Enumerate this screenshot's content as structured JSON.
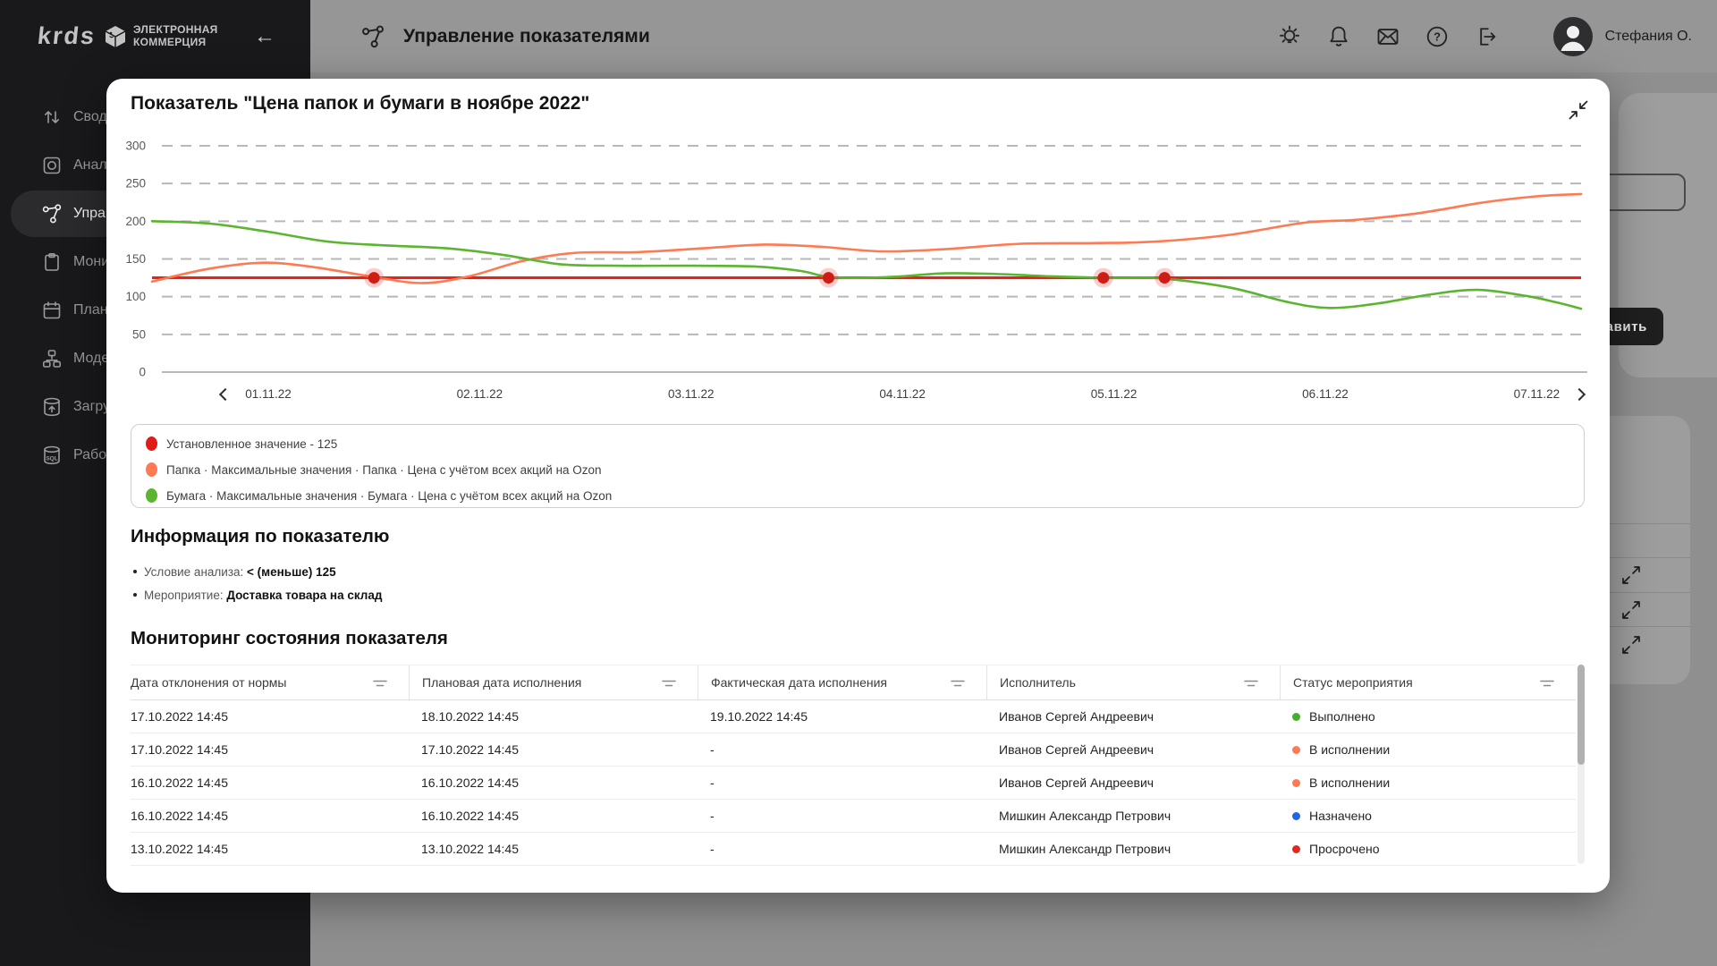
{
  "sidebar": {
    "brand": "krds",
    "brand_line1": "ЭЛЕКТРОННАЯ",
    "brand_line2": "КОММЕРЦИЯ",
    "items": [
      {
        "label": "Сводн",
        "icon": "summary-icon",
        "active": false
      },
      {
        "label": "Анали",
        "icon": "analytics-icon",
        "active": false
      },
      {
        "label": "Управ",
        "icon": "indicators-icon",
        "active": true
      },
      {
        "label": "Монит",
        "icon": "monitoring-icon",
        "active": false
      },
      {
        "label": "План р",
        "icon": "plan-icon",
        "active": false
      },
      {
        "label": "Модел",
        "icon": "model-icon",
        "active": false
      },
      {
        "label": "Загру",
        "icon": "upload-db-icon",
        "active": false
      },
      {
        "label": "Работ",
        "icon": "sql-db-icon",
        "active": false
      }
    ]
  },
  "header": {
    "title": "Управление показателями",
    "user_name": "Стефания О."
  },
  "background": {
    "add_button_label": "авить"
  },
  "modal": {
    "title": "Показатель \"Цена папок и бумаги в ноябре 2022\"",
    "legend": [
      {
        "color": "#e01b18",
        "label": "Установленное значение - 125"
      },
      {
        "color": "#ff7a52",
        "label": "Папка · Максимальные значения · Папка · Цена с учётом всех акций на Ozon"
      },
      {
        "color": "#5cb531",
        "label": "Бумага · Максимальные значения · Бумага · Цена с учётом всех акций на Ozon"
      }
    ],
    "info": {
      "heading": "Информация по показателю",
      "items": [
        {
          "label": "Условие анализа:",
          "value": "< (меньше) 125"
        },
        {
          "label": "Мероприятие:",
          "value": "Доставка товара на склад"
        }
      ]
    },
    "monitoring": {
      "heading": "Мониторинг состояния показателя",
      "columns": [
        "Дата отклонения от нормы",
        "Плановая дата исполнения",
        "Фактическая дата исполнения",
        "Исполнитель",
        "Статус мероприятия"
      ],
      "rows": [
        {
          "cells": [
            "17.10.2022 14:45",
            "18.10.2022 14:45",
            "19.10.2022 14:45",
            "Иванов Сергей Андреевич"
          ],
          "status": {
            "label": "Выполнено",
            "color": "#43b02a"
          }
        },
        {
          "cells": [
            "17.10.2022 14:45",
            "17.10.2022 14:45",
            "-",
            "Иванов Сергей Андреевич"
          ],
          "status": {
            "label": "В исполнении",
            "color": "#ff7a52"
          }
        },
        {
          "cells": [
            "16.10.2022 14:45",
            "16.10.2022 14:45",
            "-",
            "Иванов Сергей Андреевич"
          ],
          "status": {
            "label": "В исполнении",
            "color": "#ff7a52"
          }
        },
        {
          "cells": [
            "16.10.2022 14:45",
            "16.10.2022 14:45",
            "-",
            "Мишкин Александр Петрович"
          ],
          "status": {
            "label": "Назначено",
            "color": "#2264e5"
          }
        },
        {
          "cells": [
            "13.10.2022 14:45",
            "13.10.2022 14:45",
            "-",
            "Мишкин Александр Петрович"
          ],
          "status": {
            "label": "Просрочено",
            "color": "#df2b1e"
          }
        }
      ]
    }
  },
  "chart_data": {
    "type": "line",
    "title": "Показатель \"Цена папок и бумаги в ноябре 2022\"",
    "ylim": [
      0,
      300
    ],
    "y_ticks": [
      0,
      50,
      100,
      150,
      200,
      250,
      300
    ],
    "x_range": [
      0.45,
      7.21
    ],
    "x_tick_positions": [
      1,
      2,
      3,
      4,
      5,
      6,
      7
    ],
    "x_tick_labels": [
      "01.11.22",
      "02.11.22",
      "03.11.22",
      "04.11.22",
      "05.11.22",
      "06.11.22",
      "07.11.22"
    ],
    "grid": "dashed-horizontal",
    "legend_position": "bottom-box",
    "series": [
      {
        "name": "Установленное значение - 125",
        "color": "#e0261c",
        "type": "threshold",
        "value": 125,
        "marker_x": [
          1.5,
          3.65,
          4.95,
          5.24
        ]
      },
      {
        "name": "Папка · Максимальные значения · Папка · Цена с учётом всех акций на Ozon",
        "color": "#ff7a52",
        "type": "line",
        "points": [
          [
            0.45,
            120
          ],
          [
            0.72,
            137
          ],
          [
            0.98,
            145
          ],
          [
            1.22,
            139
          ],
          [
            1.5,
            126
          ],
          [
            1.73,
            118
          ],
          [
            1.95,
            127
          ],
          [
            2.2,
            147
          ],
          [
            2.45,
            158
          ],
          [
            2.75,
            159
          ],
          [
            3.05,
            164
          ],
          [
            3.35,
            169
          ],
          [
            3.62,
            166
          ],
          [
            3.9,
            160
          ],
          [
            4.2,
            163
          ],
          [
            4.55,
            170
          ],
          [
            4.9,
            171
          ],
          [
            5.2,
            173
          ],
          [
            5.55,
            182
          ],
          [
            5.9,
            198
          ],
          [
            6.15,
            202
          ],
          [
            6.45,
            211
          ],
          [
            6.75,
            225
          ],
          [
            7.0,
            233
          ],
          [
            7.21,
            236
          ]
        ]
      },
      {
        "name": "Бумага · Максимальные значения · Бумага · Цена с учётом всех акций на Ozon",
        "color": "#5cb531",
        "type": "line",
        "points": [
          [
            0.45,
            200
          ],
          [
            0.72,
            197
          ],
          [
            1.0,
            186
          ],
          [
            1.28,
            173
          ],
          [
            1.55,
            168
          ],
          [
            1.85,
            164
          ],
          [
            2.12,
            155
          ],
          [
            2.38,
            143
          ],
          [
            2.65,
            141
          ],
          [
            3.0,
            141
          ],
          [
            3.3,
            140
          ],
          [
            3.52,
            134
          ],
          [
            3.65,
            126
          ],
          [
            3.82,
            125
          ],
          [
            4.0,
            127
          ],
          [
            4.2,
            131
          ],
          [
            4.45,
            130
          ],
          [
            4.7,
            127
          ],
          [
            4.95,
            125
          ],
          [
            5.1,
            125
          ],
          [
            5.24,
            124
          ],
          [
            5.55,
            112
          ],
          [
            5.82,
            93
          ],
          [
            6.02,
            85
          ],
          [
            6.25,
            91
          ],
          [
            6.5,
            103
          ],
          [
            6.72,
            109
          ],
          [
            6.95,
            101
          ],
          [
            7.1,
            92
          ],
          [
            7.21,
            84
          ]
        ]
      }
    ]
  }
}
